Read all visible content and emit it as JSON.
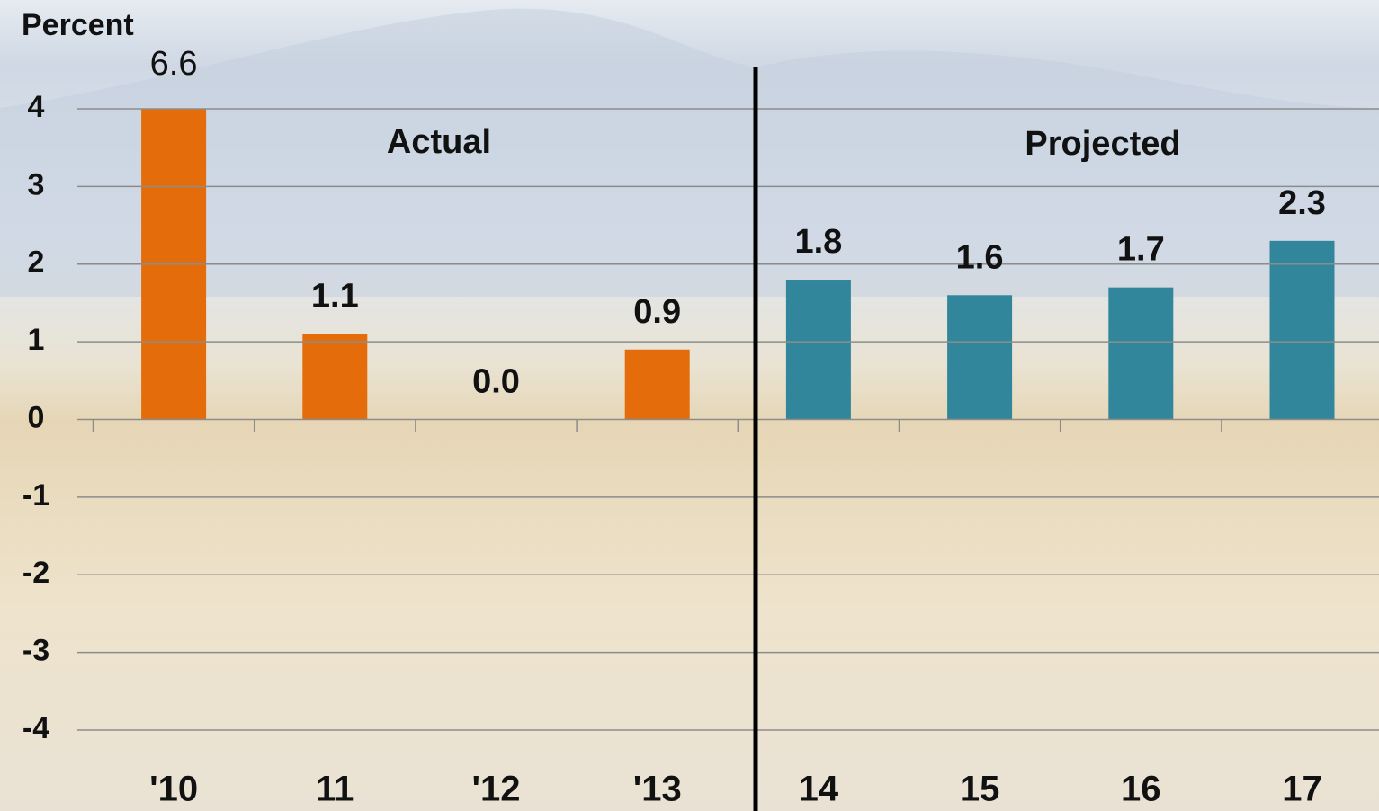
{
  "chart_data": {
    "type": "bar",
    "y_label": "Percent",
    "categories": [
      "'10",
      "11",
      "'12",
      "'13",
      "14",
      "15",
      "16",
      "17"
    ],
    "values": [
      6.6,
      1.1,
      0.0,
      0.9,
      1.8,
      1.6,
      1.7,
      2.3
    ],
    "value_labels": [
      "6.6",
      "1.1",
      "0.0",
      "0.9",
      "1.8",
      "1.6",
      "1.7",
      "2.3"
    ],
    "colors": [
      "#e46c0a",
      "#e46c0a",
      "#e46c0a",
      "#e46c0a",
      "#31869b",
      "#31869b",
      "#31869b",
      "#31869b"
    ],
    "annotations": [
      "Actual",
      "Projected"
    ],
    "ylim": [
      -4,
      4
    ],
    "yticks": [
      -4,
      -3,
      -2,
      -1,
      0,
      1,
      2,
      3,
      4
    ],
    "grid": true
  }
}
